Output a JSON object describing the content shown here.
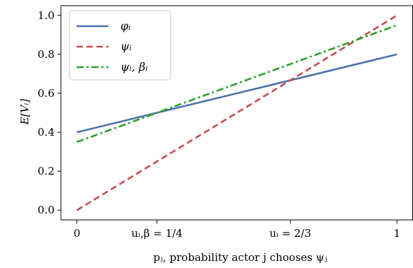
{
  "chart_data": {
    "type": "line",
    "xlabel": "pⱼ, probability actor j chooses ψⱼ",
    "ylabel": "E[Vᵢ]",
    "xlim": [
      -0.05,
      1.05
    ],
    "ylim": [
      -0.05,
      1.05
    ],
    "x_ticks": [
      {
        "value": 0,
        "label": "0"
      },
      {
        "value": 0.25,
        "label": "uᵢ,β = 1/4"
      },
      {
        "value": 0.6667,
        "label": "uᵢ = 2/3"
      },
      {
        "value": 1,
        "label": "1"
      }
    ],
    "y_ticks": [
      {
        "value": 0.0,
        "label": "0.0"
      },
      {
        "value": 0.2,
        "label": "0.2"
      },
      {
        "value": 0.4,
        "label": "0.4"
      },
      {
        "value": 0.6,
        "label": "0.6"
      },
      {
        "value": 0.8,
        "label": "0.8"
      },
      {
        "value": 1.0,
        "label": "1.0"
      }
    ],
    "grid": false,
    "legend_position": "top-left",
    "series": [
      {
        "name": "φᵢ",
        "x": [
          0,
          1
        ],
        "y": [
          0.4,
          0.8
        ],
        "color": "#4c72b0",
        "style": "solid"
      },
      {
        "name": "ψᵢ",
        "x": [
          0,
          1
        ],
        "y": [
          0.0,
          1.0
        ],
        "color": "#c44e52",
        "style": "dashed"
      },
      {
        "name": "ψᵢ, βᵢ",
        "x": [
          0,
          1
        ],
        "y": [
          0.35,
          0.95
        ],
        "color": "#2ca02c",
        "style": "dashdot"
      }
    ]
  }
}
